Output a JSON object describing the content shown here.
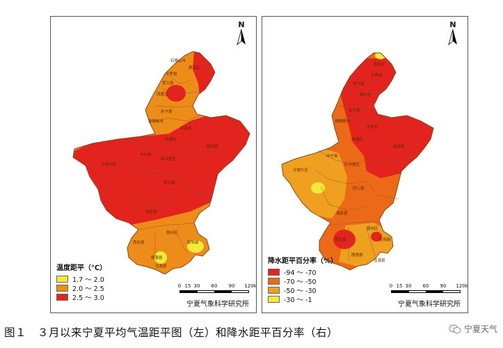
{
  "left_map": {
    "legend_title": "温度距平（℃）",
    "legend_items": [
      {
        "label": "1.7 ～ 2.0",
        "color": "#f5e93c"
      },
      {
        "label": "2.0 ～ 2.5",
        "color": "#ee8c19"
      },
      {
        "label": "2.5 ～ 3.0",
        "color": "#e3231e"
      }
    ],
    "places": [
      "石嘴山市",
      "惠农区",
      "平罗县",
      "贺兰县",
      "西夏区",
      "永宁县",
      "青铜峡市",
      "灵武市",
      "利通区",
      "中宁县",
      "沙坡头区",
      "红寺堡区",
      "同心县",
      "盐池县",
      "海原县",
      "原州区",
      "西吉县",
      "彭阳县",
      "隆德县",
      "泾源县"
    ]
  },
  "right_map": {
    "legend_title": "降水距平百分率（%）",
    "legend_items": [
      {
        "label": "-94 ～ -70",
        "color": "#e3231e"
      },
      {
        "label": "-70 ～ -50",
        "color": "#ec6a17"
      },
      {
        "label": "-50 ～ -30",
        "color": "#f0a020"
      },
      {
        "label": "-30 ～ -1",
        "color": "#f5e93c"
      }
    ],
    "places": [
      "惠农区",
      "平罗县",
      "贺兰县",
      "银川市",
      "永宁县",
      "青铜峡市",
      "灵武市",
      "利通区",
      "中宁县",
      "沙坡头区",
      "红寺堡区",
      "同心县",
      "盐池县",
      "海原县",
      "原州区",
      "西吉县",
      "彭阳县",
      "隆德县",
      "泾源县"
    ]
  },
  "north_label": "N",
  "scale": {
    "ticks": [
      "0",
      "15",
      "30",
      "60",
      "90",
      "120"
    ],
    "unit": "km"
  },
  "institute": "宁夏气象科学研究所",
  "caption": "图１　３月以来宁夏平均气温距平图（左）和降水距平百分率（右）",
  "watermark": "宁夏天气",
  "colors": {
    "border": "#7a4a20",
    "frame": "#555555"
  }
}
